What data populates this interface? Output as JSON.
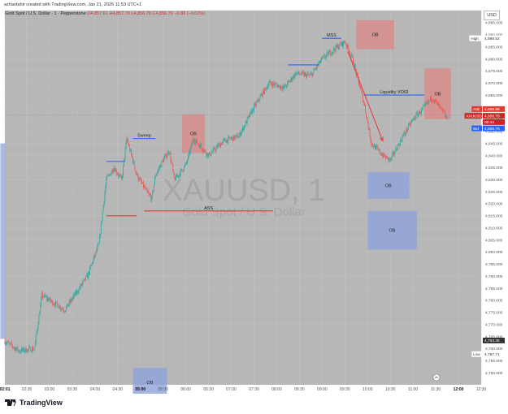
{
  "credit": "azhantahir created with TradingView.com, Jan 21, 2026 11:53 UTC+1",
  "header": {
    "symbol_line": "Gold Spot / U.S. Dollar · 1 · Pepperstone",
    "ohlc": "O4,857.61 H4,857.79 L4,856.78 C4,856.79 −0.88 (−0.02%)"
  },
  "currency_button": "USD",
  "watermark": {
    "symbol": "XAUUSD, 1",
    "name": "Gold Spot / U.S. Dollar"
  },
  "footer": {
    "brand": "TradingView"
  },
  "colors": {
    "up": "#26a69a",
    "down": "#ef5350",
    "background": "#b7b7b7",
    "ob_supply": "#d98a8a",
    "ob_demand": "#8fa3d9",
    "line_blue": "#2962ff",
    "line_red": "#e53935"
  },
  "chart_data": {
    "type": "candlestick",
    "instrument": "XAUUSD, 1",
    "ylim": [
      4745,
      4900
    ],
    "y_ticks": [
      4750,
      4755,
      4760,
      4765,
      4770,
      4775,
      4780,
      4785,
      4790,
      4795,
      4800,
      4805,
      4810,
      4815,
      4820,
      4825,
      4830,
      4835,
      4840,
      4845,
      4850,
      4855,
      4860,
      4865,
      4870,
      4875,
      4880,
      4885,
      4890,
      4895
    ],
    "x_ticks": [
      "02:01",
      "02:30",
      "03:00",
      "03:30",
      "04:00",
      "04:30",
      "05:00",
      "05:30",
      "06:00",
      "06:30",
      "07:00",
      "07:30",
      "08:00",
      "08:30",
      "09:00",
      "09:30",
      "10:00",
      "10:30",
      "11:00",
      "11:30",
      "12:00",
      "12:30"
    ],
    "bold_x_ticks": [
      "02:01",
      "05:00",
      "12:00"
    ],
    "price_path": [
      [
        "02:01",
        4763
      ],
      [
        "02:20",
        4759
      ],
      [
        "02:40",
        4760
      ],
      [
        "02:50",
        4782
      ],
      [
        "03:20",
        4776
      ],
      [
        "03:50",
        4790
      ],
      [
        "04:05",
        4803
      ],
      [
        "04:15",
        4830
      ],
      [
        "04:25",
        4835
      ],
      [
        "04:35",
        4830
      ],
      [
        "04:42",
        4847
      ],
      [
        "04:55",
        4832
      ],
      [
        "05:08",
        4825
      ],
      [
        "05:15",
        4822
      ],
      [
        "05:20",
        4832
      ],
      [
        "05:30",
        4838
      ],
      [
        "05:38",
        4842
      ],
      [
        "05:45",
        4830
      ],
      [
        "06:00",
        4836
      ],
      [
        "06:10",
        4847
      ],
      [
        "06:30",
        4840
      ],
      [
        "06:50",
        4846
      ],
      [
        "07:10",
        4848
      ],
      [
        "07:30",
        4860
      ],
      [
        "07:50",
        4870
      ],
      [
        "08:10",
        4868
      ],
      [
        "08:25",
        4874
      ],
      [
        "08:45",
        4873
      ],
      [
        "09:00",
        4880
      ],
      [
        "09:20",
        4885
      ],
      [
        "09:30",
        4887
      ],
      [
        "09:40",
        4880
      ],
      [
        "09:55",
        4862
      ],
      [
        "10:05",
        4845
      ],
      [
        "10:20",
        4840
      ],
      [
        "10:30",
        4838
      ],
      [
        "10:45",
        4847
      ],
      [
        "11:00",
        4855
      ],
      [
        "11:15",
        4860
      ],
      [
        "11:25",
        4864
      ],
      [
        "11:35",
        4860
      ],
      [
        "11:45",
        4855
      ]
    ],
    "right_labels": {
      "high": {
        "label": "High",
        "value": "4,888.52"
      },
      "ask": {
        "label": "Ask",
        "value": "4,856.98"
      },
      "last": {
        "label": "XAUUSD",
        "value": "4,856.79",
        "countdown": "00:44"
      },
      "bid": {
        "label": "Bid",
        "value": "4,856.76"
      },
      "mark": {
        "value": "4,763.35"
      },
      "low": {
        "label": "Low",
        "value": "4,757.71"
      }
    },
    "annotations": {
      "ob_boxes": [
        {
          "label": "OB",
          "kind": "supply",
          "x": [
            "09:45",
            "10:35"
          ],
          "y": [
            4884,
            4896
          ]
        },
        {
          "label": "OB",
          "kind": "supply",
          "x": [
            "05:55",
            "06:25"
          ],
          "y": [
            4841,
            4857
          ]
        },
        {
          "label": "OB",
          "kind": "supply",
          "x": [
            "11:15",
            "11:50"
          ],
          "y": [
            4855,
            4876
          ]
        },
        {
          "label": "OB",
          "kind": "demand",
          "x": [
            "10:00",
            "10:55"
          ],
          "y": [
            4822,
            4833
          ]
        },
        {
          "label": "OB",
          "kind": "demand",
          "x": [
            "10:00",
            "11:05"
          ],
          "y": [
            4801,
            4817
          ]
        },
        {
          "label": "OB",
          "kind": "demand",
          "x": [
            "04:50",
            "05:35"
          ],
          "y": [
            4740,
            4752
          ]
        }
      ],
      "left_zone": {
        "x": [
          "01:55",
          "02:01"
        ],
        "y": [
          4764,
          4845
        ]
      },
      "lines": [
        {
          "kind": "blue",
          "x": [
            "09:00",
            "09:25"
          ],
          "y": 4888.5,
          "label": "MSS"
        },
        {
          "kind": "blue",
          "x": [
            "08:15",
            "08:55"
          ],
          "y": 4877.5
        },
        {
          "kind": "blue",
          "x": [
            "09:55",
            "11:15"
          ],
          "y": 4865,
          "label": "Liquidity VOID"
        },
        {
          "kind": "blue",
          "x": [
            "04:50",
            "05:20"
          ],
          "y": 4847,
          "label": "Sweep"
        },
        {
          "kind": "blue",
          "x": [
            "04:15",
            "04:40"
          ],
          "y": 4837.5
        },
        {
          "kind": "red",
          "x": [
            "05:05",
            "07:55"
          ],
          "y": 4817,
          "label": "ASS"
        },
        {
          "kind": "red",
          "x": [
            "04:15",
            "04:55"
          ],
          "y": 4815
        }
      ],
      "arrow": {
        "from": [
          "09:34",
          4883
        ],
        "to": [
          "10:20",
          4846
        ]
      }
    }
  }
}
